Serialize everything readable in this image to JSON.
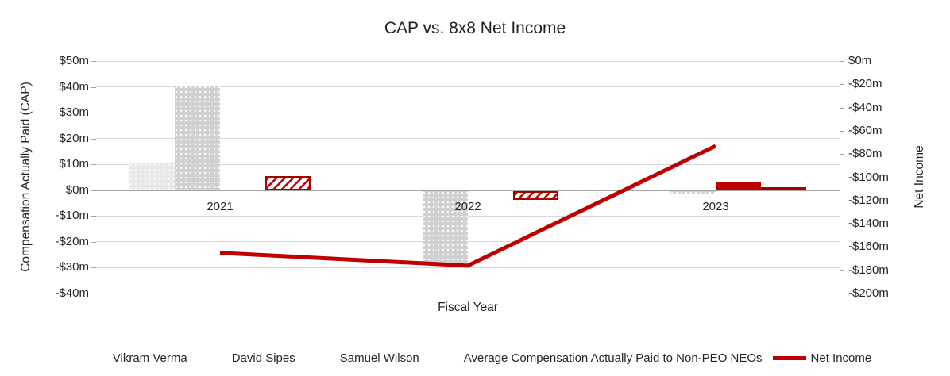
{
  "chart_data": {
    "type": "combo-bar-line",
    "title": "CAP vs. 8x8 Net Income",
    "xlabel": "Fiscal Year",
    "categories": [
      "2021",
      "2022",
      "2023"
    ],
    "grid": true,
    "legend_position": "bottom",
    "left_axis": {
      "label": "Compensation Actually Paid (CAP)",
      "min": -40,
      "max": 50,
      "step": 10,
      "tick_labels": [
        "$50m",
        "$40m",
        "$30m",
        "$20m",
        "$10m",
        "$0m",
        "-$10m",
        "-$20m",
        "-$30m",
        "-$40m"
      ],
      "tick_values": [
        50,
        40,
        30,
        20,
        10,
        0,
        -10,
        -20,
        -30,
        -40
      ]
    },
    "right_axis": {
      "label": "Net Income",
      "min": -200,
      "max": 0,
      "step": 20,
      "tick_labels": [
        "$0m",
        "-$20m",
        "-$40m",
        "-$60m",
        "-$80m",
        "-$100m",
        "-$120m",
        "-$140m",
        "-$160m",
        "-$180m",
        "-$200m"
      ],
      "tick_values": [
        0,
        -20,
        -40,
        -60,
        -80,
        -100,
        -120,
        -140,
        -160,
        -180,
        -200
      ]
    },
    "series": [
      {
        "name": "Vikram Verma",
        "kind": "bar",
        "axis": "left",
        "style": "dots-light",
        "color": "#e8e8e8",
        "values": [
          10.3,
          null,
          null
        ]
      },
      {
        "name": "David Sipes",
        "kind": "bar",
        "axis": "left",
        "style": "dots-medium",
        "color": "#d1d1d1",
        "values": [
          40.4,
          -28,
          -1.3
        ]
      },
      {
        "name": "Samuel Wilson",
        "kind": "bar",
        "axis": "left",
        "style": "solid",
        "color": "#c00000",
        "values": [
          null,
          null,
          3.2
        ]
      },
      {
        "name": "Average Compensation Actually Paid to Non-PEO NEOs",
        "kind": "bar",
        "axis": "left",
        "style": "hatch",
        "color": "#c00000",
        "values": [
          5.5,
          -3.4,
          1.2
        ]
      },
      {
        "name": "Net Income",
        "kind": "line",
        "axis": "right",
        "style": "line",
        "color": "#c00000",
        "values": [
          -165,
          -176,
          -73
        ]
      }
    ]
  }
}
